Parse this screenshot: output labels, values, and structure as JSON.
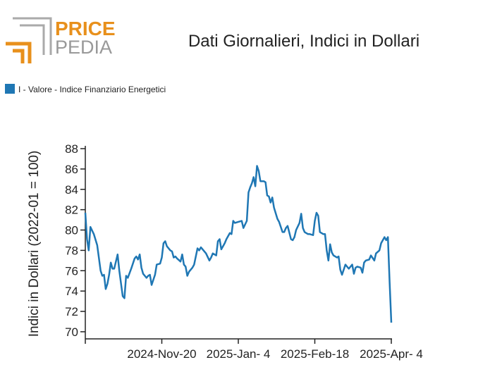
{
  "logo": {
    "top": "PRICE",
    "bottom": "PEDIA"
  },
  "chart_data": {
    "type": "line",
    "title": "Dati Giornalieri, Indici in Dollari",
    "y_label": "Indici in Dollari (2022-01 = 100)",
    "legend_position": "top-left",
    "series": [
      {
        "name": "I - Valore - Indice Finanziario Energetici",
        "color": "#1f77b4",
        "x": [
          "2024-10-06",
          "2024-10-07",
          "2024-10-08",
          "2024-10-09",
          "2024-10-11",
          "2024-10-13",
          "2024-10-15",
          "2024-10-16",
          "2024-10-17",
          "2024-10-18",
          "2024-10-19",
          "2024-10-20",
          "2024-10-21",
          "2024-10-22",
          "2024-10-23",
          "2024-10-25",
          "2024-10-26",
          "2024-10-28",
          "2024-10-29",
          "2024-10-30",
          "2024-10-31",
          "2024-11-02",
          "2024-11-04",
          "2024-11-05",
          "2024-11-06",
          "2024-11-07",
          "2024-11-08",
          "2024-11-09",
          "2024-11-11",
          "2024-11-12",
          "2024-11-13",
          "2024-11-14",
          "2024-11-16",
          "2024-11-17",
          "2024-11-19",
          "2024-11-20",
          "2024-11-21",
          "2024-11-22",
          "2024-11-23",
          "2024-11-25",
          "2024-11-26",
          "2024-11-27",
          "2024-11-28",
          "2024-11-29",
          "2024-12-01",
          "2024-12-02",
          "2024-12-03",
          "2024-12-04",
          "2024-12-05",
          "2024-12-06",
          "2024-12-08",
          "2024-12-09",
          "2024-12-11",
          "2024-12-12",
          "2024-12-13",
          "2024-12-15",
          "2024-12-16",
          "2024-12-18",
          "2024-12-19",
          "2024-12-20",
          "2024-12-22",
          "2024-12-23",
          "2024-12-24",
          "2024-12-25",
          "2024-12-27",
          "2024-12-28",
          "2024-12-30",
          "2024-12-31",
          "2025-01-01",
          "2025-01-02",
          "2025-01-04",
          "2025-01-06",
          "2025-01-07",
          "2025-01-09",
          "2025-01-10",
          "2025-01-11",
          "2025-01-12",
          "2025-01-13",
          "2025-01-14",
          "2025-01-15",
          "2025-01-16",
          "2025-01-17",
          "2025-01-19",
          "2025-01-20",
          "2025-01-21",
          "2025-01-22",
          "2025-01-23",
          "2025-01-24",
          "2025-01-25",
          "2025-01-27",
          "2025-01-28",
          "2025-01-30",
          "2025-01-31",
          "2025-02-01",
          "2025-02-02",
          "2025-02-04",
          "2025-02-05",
          "2025-02-06",
          "2025-02-07",
          "2025-02-09",
          "2025-02-10",
          "2025-02-11",
          "2025-02-12",
          "2025-02-14",
          "2025-02-15",
          "2025-02-17",
          "2025-02-18",
          "2025-02-19",
          "2025-02-20",
          "2025-02-21",
          "2025-02-23",
          "2025-02-24",
          "2025-02-25",
          "2025-02-26",
          "2025-02-27",
          "2025-02-28",
          "2025-03-01",
          "2025-03-03",
          "2025-03-04",
          "2025-03-05",
          "2025-03-06",
          "2025-03-08",
          "2025-03-09",
          "2025-03-10",
          "2025-03-12",
          "2025-03-13",
          "2025-03-14",
          "2025-03-15",
          "2025-03-17",
          "2025-03-18",
          "2025-03-19",
          "2025-03-20",
          "2025-03-22",
          "2025-03-23",
          "2025-03-25",
          "2025-03-26",
          "2025-03-28",
          "2025-03-29",
          "2025-03-31",
          "2025-04-01",
          "2025-04-02",
          "2025-04-03",
          "2025-04-04"
        ],
        "values": [
          81.7,
          79.1,
          78.0,
          80.3,
          79.6,
          78.5,
          76.0,
          75.5,
          75.6,
          74.2,
          74.7,
          75.6,
          76.8,
          76.2,
          76.2,
          77.6,
          76.0,
          73.5,
          73.3,
          75.5,
          75.3,
          76.2,
          77.2,
          77.4,
          77.1,
          77.6,
          76.3,
          75.7,
          75.3,
          75.5,
          75.6,
          74.6,
          75.6,
          76.6,
          76.7,
          77.3,
          78.7,
          78.9,
          78.4,
          78.0,
          77.9,
          77.3,
          77.4,
          77.2,
          76.9,
          77.6,
          76.6,
          76.4,
          75.5,
          75.9,
          76.3,
          76.6,
          78.2,
          78.0,
          78.3,
          77.9,
          77.7,
          77.0,
          77.3,
          77.7,
          77.5,
          78.9,
          79.1,
          78.1,
          78.7,
          79.1,
          79.7,
          79.6,
          80.9,
          80.7,
          80.8,
          80.9,
          80.2,
          80.9,
          83.7,
          84.2,
          84.6,
          85.2,
          84.3,
          86.3,
          85.8,
          84.8,
          84.8,
          84.7,
          83.4,
          83.3,
          82.7,
          83.2,
          82.2,
          81.1,
          80.8,
          79.8,
          79.8,
          80.2,
          80.4,
          79.1,
          79.0,
          79.3,
          80.0,
          80.7,
          81.6,
          80.2,
          79.8,
          79.6,
          79.6,
          79.5,
          80.9,
          81.7,
          81.4,
          79.8,
          79.6,
          79.6,
          78.0,
          77.0,
          78.6,
          77.8,
          77.5,
          77.3,
          77.4,
          76.1,
          75.6,
          76.6,
          76.4,
          76.2,
          76.6,
          75.7,
          76.3,
          76.4,
          76.3,
          75.8,
          76.8,
          77.0,
          77.1,
          77.5,
          77.0,
          77.7,
          78.0,
          78.7,
          79.3,
          79.0,
          79.3,
          74.9,
          70.9
        ]
      }
    ],
    "xlim": [
      "2024-10-06",
      "2025-04-04"
    ],
    "xticks": [
      {
        "value": "2024-10-06",
        "label": null
      },
      {
        "value": "2024-11-20",
        "label": "2024-Nov-20"
      },
      {
        "value": "2025-01-04",
        "label": "2025-Jan- 4"
      },
      {
        "value": "2025-02-18",
        "label": "2025-Feb-18"
      },
      {
        "value": "2025-04-04",
        "label": "2025-Apr- 4"
      }
    ],
    "ylim": [
      69.3,
      88
    ],
    "yticks": [
      70,
      72,
      74,
      76,
      78,
      80,
      82,
      84,
      86,
      88
    ],
    "grid": false
  }
}
